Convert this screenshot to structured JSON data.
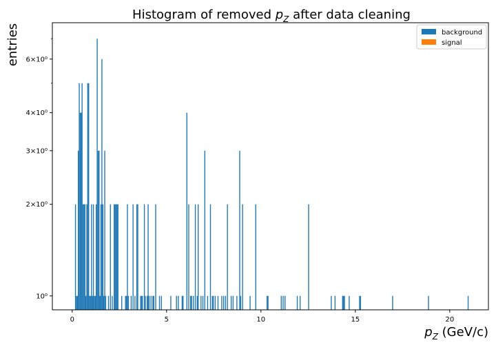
{
  "chart_data": {
    "type": "histogram",
    "title": "Histogram of removed p_Z after data cleaning",
    "title_text": "Histogram of removed ",
    "title_var": "p",
    "title_sub": "Z",
    "title_tail": " after data cleaning",
    "xlabel_var": "p",
    "xlabel_sub": "Z",
    "xlabel_tail": " (GeV/c)",
    "ylabel": "entries",
    "xlim": [
      -1.05,
      22.05
    ],
    "ylim": [
      0.9,
      7.9
    ],
    "yscale": "log",
    "bin_width": 0.05,
    "xticks": [
      0,
      5,
      10,
      15,
      20
    ],
    "xtick_labels": [
      "0",
      "5",
      "10",
      "15",
      "20"
    ],
    "yticks_major": [
      1,
      2,
      3,
      4,
      6
    ],
    "ytick_labels": [
      "10⁰",
      "2×10⁰",
      "3×10⁰",
      "4×10⁰",
      "6×10⁰"
    ],
    "yticks_minor": [
      5,
      7
    ],
    "legend_position": "top-right",
    "series": [
      {
        "name": "background",
        "color": "#1f77b4",
        "bins": [
          [
            0.15,
            2
          ],
          [
            0.2,
            1
          ],
          [
            0.25,
            1
          ],
          [
            0.3,
            3
          ],
          [
            0.35,
            5
          ],
          [
            0.4,
            4
          ],
          [
            0.45,
            4
          ],
          [
            0.5,
            5
          ],
          [
            0.55,
            2
          ],
          [
            0.6,
            2
          ],
          [
            0.65,
            2
          ],
          [
            0.7,
            1
          ],
          [
            0.75,
            2
          ],
          [
            0.8,
            5
          ],
          [
            0.85,
            5
          ],
          [
            0.9,
            1
          ],
          [
            0.95,
            1
          ],
          [
            1.0,
            2
          ],
          [
            1.05,
            1
          ],
          [
            1.1,
            2
          ],
          [
            1.15,
            1
          ],
          [
            1.2,
            1
          ],
          [
            1.25,
            2
          ],
          [
            1.3,
            7
          ],
          [
            1.35,
            3
          ],
          [
            1.4,
            3
          ],
          [
            1.45,
            1
          ],
          [
            1.5,
            2
          ],
          [
            1.55,
            6
          ],
          [
            1.6,
            2
          ],
          [
            1.65,
            1
          ],
          [
            1.7,
            3
          ],
          [
            1.75,
            1
          ],
          [
            1.9,
            1
          ],
          [
            2.0,
            2
          ],
          [
            2.1,
            1
          ],
          [
            2.2,
            2
          ],
          [
            2.25,
            2
          ],
          [
            2.3,
            2
          ],
          [
            2.35,
            2
          ],
          [
            2.4,
            2
          ],
          [
            2.6,
            1
          ],
          [
            2.8,
            1
          ],
          [
            2.85,
            1
          ],
          [
            2.9,
            2
          ],
          [
            2.95,
            1
          ],
          [
            3.1,
            1
          ],
          [
            3.2,
            2
          ],
          [
            3.3,
            1
          ],
          [
            3.4,
            2
          ],
          [
            3.45,
            2
          ],
          [
            3.6,
            1
          ],
          [
            3.65,
            1
          ],
          [
            3.7,
            1
          ],
          [
            3.8,
            2
          ],
          [
            3.85,
            1
          ],
          [
            3.95,
            1
          ],
          [
            4.0,
            2
          ],
          [
            4.05,
            1
          ],
          [
            4.15,
            1
          ],
          [
            4.25,
            1
          ],
          [
            4.3,
            1
          ],
          [
            4.4,
            2
          ],
          [
            4.6,
            1
          ],
          [
            4.7,
            1
          ],
          [
            5.2,
            1
          ],
          [
            5.5,
            1
          ],
          [
            5.6,
            1
          ],
          [
            5.8,
            1
          ],
          [
            5.85,
            1
          ],
          [
            6.05,
            4
          ],
          [
            6.15,
            2
          ],
          [
            6.25,
            1
          ],
          [
            6.3,
            1
          ],
          [
            6.4,
            1
          ],
          [
            6.5,
            2
          ],
          [
            6.6,
            1
          ],
          [
            6.65,
            2
          ],
          [
            6.8,
            1
          ],
          [
            6.9,
            1
          ],
          [
            7.0,
            3
          ],
          [
            7.15,
            1
          ],
          [
            7.3,
            2
          ],
          [
            7.4,
            1
          ],
          [
            7.45,
            1
          ],
          [
            7.55,
            1
          ],
          [
            7.7,
            1
          ],
          [
            7.9,
            1
          ],
          [
            8.0,
            1
          ],
          [
            8.1,
            1
          ],
          [
            8.2,
            2
          ],
          [
            8.4,
            1
          ],
          [
            8.5,
            1
          ],
          [
            8.7,
            1
          ],
          [
            8.85,
            3
          ],
          [
            8.9,
            1
          ],
          [
            9.0,
            2
          ],
          [
            9.4,
            1
          ],
          [
            9.7,
            2
          ],
          [
            10.3,
            1
          ],
          [
            10.35,
            1
          ],
          [
            11.05,
            1
          ],
          [
            11.15,
            1
          ],
          [
            11.25,
            1
          ],
          [
            11.9,
            1
          ],
          [
            12.05,
            1
          ],
          [
            12.5,
            2
          ],
          [
            13.7,
            1
          ],
          [
            13.9,
            1
          ],
          [
            14.3,
            1
          ],
          [
            14.35,
            1
          ],
          [
            14.4,
            1
          ],
          [
            14.65,
            1
          ],
          [
            15.2,
            1
          ],
          [
            15.25,
            1
          ],
          [
            16.95,
            1
          ],
          [
            18.85,
            1
          ],
          [
            20.95,
            1
          ]
        ]
      },
      {
        "name": "signal",
        "color": "#ff7f0e",
        "bins": []
      }
    ]
  }
}
